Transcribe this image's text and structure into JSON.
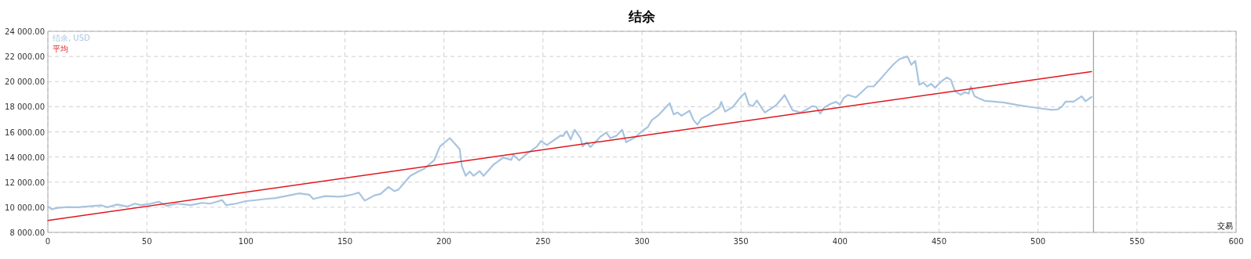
{
  "chart_data": {
    "type": "line",
    "title": "结余",
    "xlabel": "交易",
    "xlim": [
      0,
      600
    ],
    "xticks": [
      0,
      50,
      100,
      150,
      200,
      250,
      300,
      350,
      400,
      450,
      500,
      550,
      600
    ],
    "ylim": [
      8000,
      24000
    ],
    "yticks": [
      {
        "value": 8000,
        "label": "8 000.00"
      },
      {
        "value": 10000,
        "label": "10 000.00"
      },
      {
        "value": 12000,
        "label": "12 000.00"
      },
      {
        "value": 14000,
        "label": "14 000.00"
      },
      {
        "value": 16000,
        "label": "16 000.00"
      },
      {
        "value": 18000,
        "label": "18 000.00"
      },
      {
        "value": 20000,
        "label": "20 000.00"
      },
      {
        "value": 22000,
        "label": "22 000.00"
      },
      {
        "value": 24000,
        "label": "24 000.00"
      }
    ],
    "grid": true,
    "legend": "top left",
    "ref_lines": [
      {
        "axis": "x",
        "value": 528,
        "color": "#a0a0a0"
      }
    ],
    "series": [
      {
        "name": "结余, USD",
        "color": "#a8c4e0",
        "x": [
          0,
          2,
          5,
          10,
          15,
          20,
          27,
          30,
          35,
          40,
          44,
          47,
          52,
          56,
          60,
          65,
          72,
          78,
          82,
          88,
          90,
          95,
          100,
          105,
          110,
          115,
          120,
          127,
          132,
          134,
          140,
          147,
          150,
          154,
          157,
          160,
          165,
          168,
          172,
          175,
          177,
          183,
          187,
          190,
          195,
          198,
          203,
          208,
          209,
          211,
          213,
          215,
          218,
          220,
          225,
          230,
          234,
          235,
          238,
          242,
          247,
          249,
          252,
          259,
          260,
          262,
          264,
          266,
          269,
          270,
          272,
          274,
          279,
          282,
          284,
          287,
          290,
          292,
          297,
          300,
          303,
          305,
          308,
          312,
          314,
          316,
          318,
          320,
          324,
          326,
          328,
          330,
          334,
          339,
          340,
          342,
          346,
          349,
          352,
          354,
          356,
          358,
          362,
          366,
          368,
          371,
          372,
          376,
          380,
          383,
          386,
          388,
          390,
          392,
          395,
          398,
          400,
          402,
          404,
          408,
          414,
          417,
          420,
          424,
          427,
          430,
          434,
          436,
          438,
          440,
          442,
          444,
          446,
          448,
          451,
          454,
          456,
          458,
          461,
          463,
          465,
          466,
          468,
          470,
          473,
          478,
          483,
          490,
          497,
          502,
          507,
          510,
          512,
          514,
          518,
          522,
          524,
          527
        ],
        "values": [
          10060,
          9840,
          9950,
          10020,
          10000,
          10060,
          10150,
          10000,
          10220,
          10060,
          10290,
          10170,
          10290,
          10440,
          10110,
          10290,
          10170,
          10350,
          10290,
          10570,
          10170,
          10290,
          10490,
          10570,
          10660,
          10730,
          10890,
          11110,
          11000,
          10660,
          10890,
          10840,
          10890,
          11020,
          11170,
          10530,
          10950,
          11060,
          11620,
          11280,
          11400,
          12500,
          12840,
          13060,
          13730,
          14840,
          15500,
          14610,
          13280,
          12500,
          12840,
          12500,
          12880,
          12500,
          13390,
          13950,
          13770,
          14170,
          13730,
          14280,
          14840,
          15280,
          14950,
          15720,
          15660,
          16060,
          15390,
          16170,
          15500,
          14840,
          15170,
          14790,
          15610,
          15950,
          15500,
          15680,
          16170,
          15170,
          15610,
          16060,
          16390,
          16940,
          17280,
          17940,
          18280,
          17390,
          17540,
          17280,
          17680,
          16940,
          16570,
          17050,
          17390,
          17940,
          18390,
          17610,
          17990,
          18610,
          19100,
          18160,
          18050,
          18500,
          17540,
          17940,
          18160,
          18720,
          18940,
          17720,
          17540,
          17760,
          18050,
          17990,
          17450,
          17940,
          18210,
          18390,
          18160,
          18720,
          18940,
          18740,
          19610,
          19610,
          20130,
          20850,
          21370,
          21790,
          22000,
          21340,
          21650,
          19740,
          19920,
          19610,
          19820,
          19510,
          19990,
          20340,
          20130,
          19240,
          18950,
          19160,
          19030,
          19610,
          18830,
          18680,
          18470,
          18410,
          18330,
          18120,
          17960,
          17850,
          17750,
          17790,
          18000,
          18410,
          18410,
          18830,
          18430,
          18780
        ]
      },
      {
        "name": "平均",
        "color": "#e0161c",
        "x": [
          0,
          527
        ],
        "values": [
          8950,
          20800
        ]
      }
    ]
  }
}
